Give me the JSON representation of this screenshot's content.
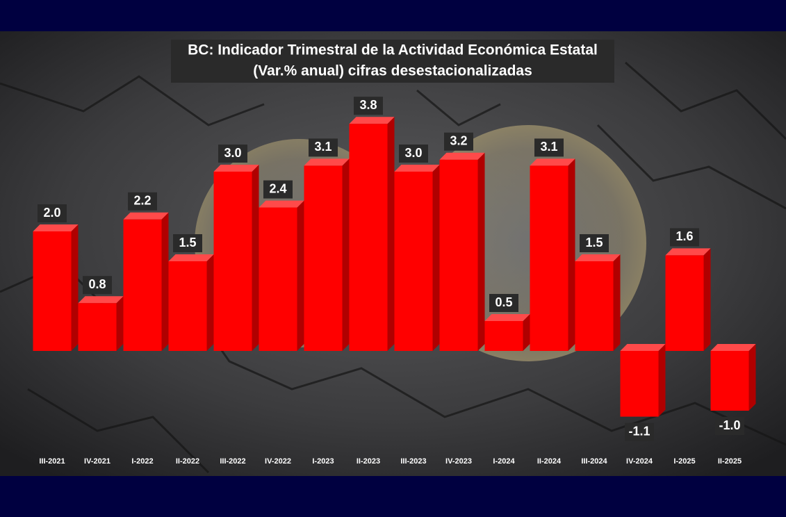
{
  "chart_data": {
    "type": "bar",
    "title": "BC: Indicador Trimestral de la Actividad Económica Estatal",
    "subtitle": "(Var.% anual) cifras desestacionalizadas",
    "categories": [
      "III-2021",
      "IV-2021",
      "I-2022",
      "II-2022",
      "III-2022",
      "IV-2022",
      "I-2023",
      "II-2023",
      "III-2023",
      "IV-2023",
      "I-2024",
      "II-2024",
      "III-2024",
      "IV-2024",
      "I-2025",
      "II-2025"
    ],
    "values": [
      2.0,
      0.8,
      2.2,
      1.5,
      3.0,
      2.4,
      3.1,
      3.8,
      3.0,
      3.2,
      0.5,
      3.1,
      1.5,
      -1.1,
      1.6,
      -1.0
    ],
    "value_labels": [
      "2.0",
      "0.8",
      "2.2",
      "1.5",
      "3.0",
      "2.4",
      "3.1",
      "3.8",
      "3.0",
      "3.2",
      "0.5",
      "3.1",
      "1.5",
      "-1.1",
      "1.6",
      "-1.0"
    ],
    "color": "#ff0000"
  }
}
